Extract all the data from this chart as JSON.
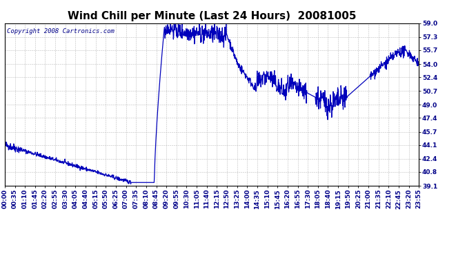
{
  "title": "Wind Chill per Minute (Last 24 Hours)  20081005",
  "copyright_text": "Copyright 2008 Cartronics.com",
  "line_color": "#0000bb",
  "background_color": "#ffffff",
  "grid_color": "#bbbbbb",
  "ylim": [
    39.1,
    59.0
  ],
  "yticks": [
    39.1,
    40.8,
    42.4,
    44.1,
    45.7,
    47.4,
    49.0,
    50.7,
    52.4,
    54.0,
    55.7,
    57.3,
    59.0
  ],
  "xtick_labels": [
    "00:00",
    "00:35",
    "01:10",
    "01:45",
    "02:20",
    "02:55",
    "03:30",
    "04:05",
    "04:40",
    "05:15",
    "05:50",
    "06:25",
    "07:00",
    "07:35",
    "08:10",
    "08:45",
    "09:20",
    "09:55",
    "10:30",
    "11:05",
    "11:40",
    "12:15",
    "12:50",
    "13:25",
    "14:00",
    "14:35",
    "15:10",
    "15:45",
    "16:20",
    "16:55",
    "17:30",
    "18:05",
    "18:40",
    "19:15",
    "19:50",
    "20:25",
    "21:00",
    "21:35",
    "22:10",
    "22:45",
    "23:20",
    "23:55"
  ],
  "title_fontsize": 11,
  "tick_fontsize": 6.5,
  "copyright_fontsize": 6.5,
  "linewidth": 0.9
}
